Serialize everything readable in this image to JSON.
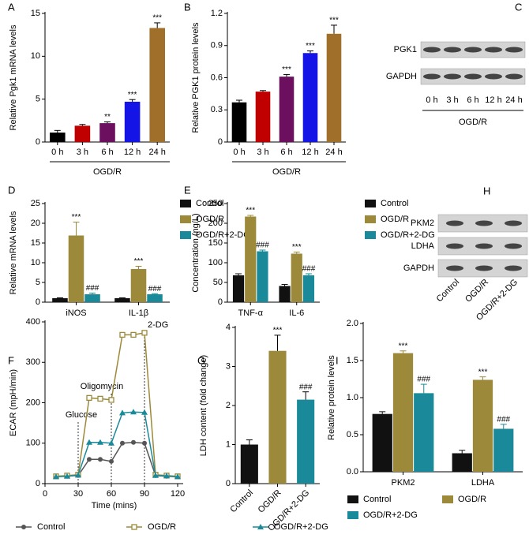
{
  "chart_data": [
    {
      "panel": "A",
      "type": "bar",
      "ylabel": "Relative Pgk1 mRNA levels",
      "xlabel": "OGD/R",
      "categories": [
        "0 h",
        "3 h",
        "6 h",
        "12 h",
        "24 h"
      ],
      "values": [
        1.1,
        1.9,
        2.2,
        4.7,
        13.3
      ],
      "errors": [
        0.25,
        0.15,
        0.15,
        0.25,
        0.6
      ],
      "colors": [
        "#000000",
        "#c00000",
        "#6b0f5e",
        "#1414e6",
        "#a0702a"
      ],
      "annotations": [
        null,
        null,
        "**",
        "***",
        "***"
      ],
      "ylim": [
        0,
        15
      ],
      "yticks": [
        0,
        5,
        10,
        15
      ]
    },
    {
      "panel": "B",
      "type": "bar",
      "ylabel": "Relative PGK1 protein levels",
      "xlabel": "OGD/R",
      "categories": [
        "0 h",
        "3 h",
        "6 h",
        "12 h",
        "24 h"
      ],
      "values": [
        0.37,
        0.47,
        0.61,
        0.83,
        1.01
      ],
      "errors": [
        0.02,
        0.01,
        0.02,
        0.02,
        0.08
      ],
      "colors": [
        "#000000",
        "#c00000",
        "#6b0f5e",
        "#1414e6",
        "#a0702a"
      ],
      "annotations": [
        null,
        null,
        "***",
        "***",
        "***"
      ],
      "ylim": [
        0,
        1.2
      ],
      "yticks": [
        0,
        0.3,
        0.6,
        0.9,
        1.2
      ]
    },
    {
      "panel": "D",
      "type": "grouped_bar",
      "ylabel": "Relative mRNA levels",
      "legend": "right",
      "categories": [
        "iNOS",
        "IL-1β"
      ],
      "series": [
        {
          "name": "Control",
          "color": "#111111",
          "values": [
            1.0,
            1.0
          ],
          "errors": [
            0.1,
            0.1
          ],
          "annotations": [
            null,
            null
          ]
        },
        {
          "name": "OGD/R",
          "color": "#9c8a3a",
          "values": [
            16.9,
            8.4
          ],
          "errors": [
            3.4,
            0.7
          ],
          "annotations": [
            "***",
            "***"
          ]
        },
        {
          "name": "OGD/R+2-DG",
          "color": "#1a8a9a",
          "values": [
            2.0,
            2.0
          ],
          "errors": [
            0.3,
            0.15
          ],
          "annotations": [
            "###",
            "###"
          ]
        }
      ],
      "ylim": [
        0,
        25
      ],
      "yticks": [
        0,
        5,
        10,
        15,
        20,
        25
      ]
    },
    {
      "panel": "E",
      "type": "grouped_bar",
      "ylabel": "Concentration (ng/L)",
      "legend": "right",
      "categories": [
        "TNF-α",
        "IL-6"
      ],
      "series": [
        {
          "name": "Control",
          "color": "#111111",
          "values": [
            68,
            41
          ],
          "errors": [
            4,
            4
          ],
          "annotations": [
            null,
            null
          ]
        },
        {
          "name": "OGD/R",
          "color": "#9c8a3a",
          "values": [
            217,
            123
          ],
          "errors": [
            3,
            4
          ],
          "annotations": [
            "***",
            "***"
          ]
        },
        {
          "name": "OGD/R+2-DG",
          "color": "#1a8a9a",
          "values": [
            129,
            68
          ],
          "errors": [
            3,
            4
          ],
          "annotations": [
            "###",
            "###"
          ]
        }
      ],
      "ylim": [
        0,
        250
      ],
      "yticks": [
        0,
        50,
        100,
        150,
        200,
        250
      ]
    },
    {
      "panel": "F",
      "type": "line",
      "ylabel": "ECAR (mpH/min)",
      "xlabel": "Time (mins)",
      "legend": "bottom",
      "x": [
        10,
        20,
        30,
        40,
        50,
        60,
        70,
        80,
        90,
        100,
        110,
        120
      ],
      "series": [
        {
          "name": "Control",
          "color": "#555555",
          "marker": "circle",
          "values": [
            18,
            19,
            20,
            60,
            60,
            55,
            100,
            102,
            100,
            20,
            18,
            17
          ]
        },
        {
          "name": "OGD/R",
          "color": "#9c8a3a",
          "marker": "square",
          "values": [
            18,
            20,
            22,
            212,
            210,
            207,
            368,
            368,
            373,
            22,
            20,
            18
          ]
        },
        {
          "name": "OGD/R+2-DG",
          "color": "#1a8a9a",
          "marker": "triangle",
          "values": [
            17,
            18,
            21,
            102,
            102,
            100,
            175,
            177,
            176,
            20,
            19,
            17
          ]
        }
      ],
      "events": [
        {
          "x": 30,
          "label": "Glucose"
        },
        {
          "x": 60,
          "label": "Oligomycin"
        },
        {
          "x": 90,
          "label": "2-DG"
        }
      ],
      "xlim": [
        0,
        125
      ],
      "xticks": [
        0,
        30,
        60,
        90,
        120
      ],
      "ylim": [
        0,
        400
      ],
      "yticks": [
        0,
        100,
        200,
        300,
        400
      ]
    },
    {
      "panel": "G",
      "type": "bar",
      "ylabel": "LDH content (fold change)",
      "rotate_labels": true,
      "categories": [
        "Control",
        "OGD/R",
        "OGD/R+2-DG"
      ],
      "values": [
        1.0,
        3.4,
        2.15
      ],
      "errors": [
        0.12,
        0.4,
        0.2
      ],
      "colors": [
        "#111111",
        "#9c8a3a",
        "#1a8a9a"
      ],
      "annotations": [
        null,
        "***",
        "###"
      ],
      "ylim": [
        0,
        4
      ],
      "yticks": [
        0,
        1,
        2,
        3,
        4
      ]
    },
    {
      "panel": "I",
      "type": "grouped_bar",
      "ylabel": "Relative protein levels",
      "legend": "bottom",
      "categories": [
        "PKM2",
        "LDHA"
      ],
      "series": [
        {
          "name": "Control",
          "color": "#111111",
          "values": [
            0.78,
            0.25
          ],
          "errors": [
            0.03,
            0.04
          ],
          "annotations": [
            null,
            null
          ]
        },
        {
          "name": "OGD/R",
          "color": "#9c8a3a",
          "values": [
            1.6,
            1.24
          ],
          "errors": [
            0.03,
            0.04
          ],
          "annotations": [
            "***",
            "***"
          ]
        },
        {
          "name": "OGD/R+2-DG",
          "color": "#1a8a9a",
          "values": [
            1.06,
            0.58
          ],
          "errors": [
            0.12,
            0.06
          ],
          "annotations": [
            "###",
            "###"
          ]
        }
      ],
      "ylim": [
        0,
        2
      ],
      "yticks": [
        {
          "value": 0,
          "label": "0.0"
        },
        0.5,
        {
          "value": 1,
          "label": "1.0"
        },
        1.5,
        {
          "value": 2,
          "label": "2.0"
        }
      ]
    }
  ],
  "blots": [
    {
      "panel": "C",
      "rows": [
        "PGK1",
        "GAPDH"
      ],
      "lanes": [
        "0 h",
        "3 h",
        "6 h",
        "12 h",
        "24 h"
      ],
      "xlabel": "OGD/R"
    },
    {
      "panel": "H",
      "rows": [
        "PKM2",
        "LDHA",
        "GAPDH"
      ],
      "lanes": [
        "Control",
        "OGD/R",
        "OGD/R+2-DG"
      ]
    }
  ]
}
